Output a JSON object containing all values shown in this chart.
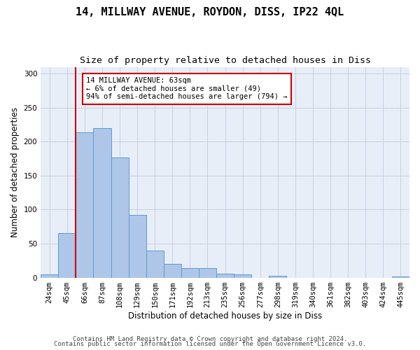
{
  "title1": "14, MILLWAY AVENUE, ROYDON, DISS, IP22 4QL",
  "title2": "Size of property relative to detached houses in Diss",
  "xlabel": "Distribution of detached houses by size in Diss",
  "ylabel": "Number of detached properties",
  "bar_labels": [
    "24sqm",
    "45sqm",
    "66sqm",
    "87sqm",
    "108sqm",
    "129sqm",
    "150sqm",
    "171sqm",
    "192sqm",
    "213sqm",
    "235sqm",
    "256sqm",
    "277sqm",
    "298sqm",
    "319sqm",
    "340sqm",
    "361sqm",
    "382sqm",
    "403sqm",
    "424sqm",
    "445sqm"
  ],
  "bar_values": [
    5,
    65,
    214,
    220,
    177,
    92,
    40,
    20,
    14,
    14,
    6,
    5,
    0,
    3,
    0,
    0,
    0,
    0,
    0,
    0,
    2
  ],
  "bar_color": "#aec6e8",
  "bar_edgecolor": "#5b9bd5",
  "vline_color": "#cc0000",
  "annotation_text": "14 MILLWAY AVENUE: 63sqm\n← 6% of detached houses are smaller (49)\n94% of semi-detached houses are larger (794) →",
  "annotation_box_color": "#ffffff",
  "annotation_box_edgecolor": "#cc0000",
  "ylim": [
    0,
    310
  ],
  "yticks": [
    0,
    50,
    100,
    150,
    200,
    250,
    300
  ],
  "grid_color": "#c8d0e0",
  "bg_color": "#e8eef8",
  "footer1": "Contains HM Land Registry data © Crown copyright and database right 2024.",
  "footer2": "Contains public sector information licensed under the Open Government Licence v3.0.",
  "title1_fontsize": 11,
  "title2_fontsize": 9.5,
  "tick_fontsize": 7.5,
  "ylabel_fontsize": 8.5,
  "xlabel_fontsize": 8.5,
  "annotation_fontsize": 7.5,
  "footer_fontsize": 6.5
}
